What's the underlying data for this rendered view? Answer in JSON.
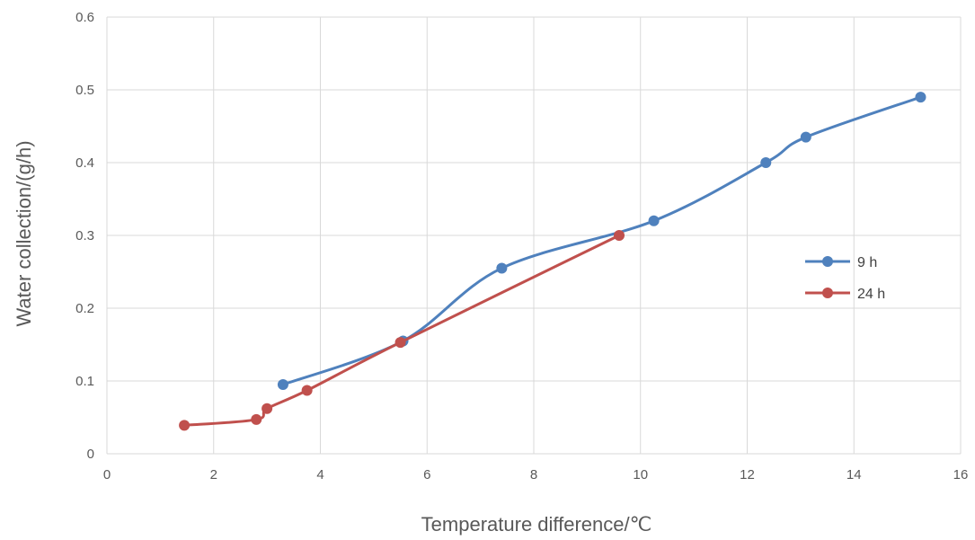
{
  "chart_data": {
    "type": "line",
    "xlabel": "Temperature difference/℃",
    "ylabel": "Water collection/(g/h)",
    "xlim": [
      0,
      16
    ],
    "ylim": [
      0,
      0.6
    ],
    "xticks": [
      0,
      2,
      4,
      6,
      8,
      10,
      12,
      14,
      16
    ],
    "yticks": [
      0,
      0.1,
      0.2,
      0.3,
      0.4,
      0.5,
      0.6
    ],
    "xtick_labels": [
      "0",
      "2",
      "4",
      "6",
      "8",
      "10",
      "12",
      "14",
      "16"
    ],
    "ytick_labels": [
      "0",
      "0.1",
      "0.2",
      "0.3",
      "0.4",
      "0.5",
      "0.6"
    ],
    "grid": true,
    "smooth": true,
    "legend": "right",
    "series": [
      {
        "name": "9 h",
        "color": "#4f81bd",
        "x": [
          3.3,
          5.55,
          7.4,
          10.25,
          12.35,
          13.1,
          15.25
        ],
        "y": [
          0.095,
          0.155,
          0.255,
          0.32,
          0.4,
          0.435,
          0.49
        ]
      },
      {
        "name": "24 h",
        "color": "#c0504d",
        "x": [
          1.45,
          2.8,
          3.0,
          3.75,
          5.5,
          9.6
        ],
        "y": [
          0.039,
          0.047,
          0.062,
          0.087,
          0.153,
          0.3
        ]
      }
    ]
  }
}
